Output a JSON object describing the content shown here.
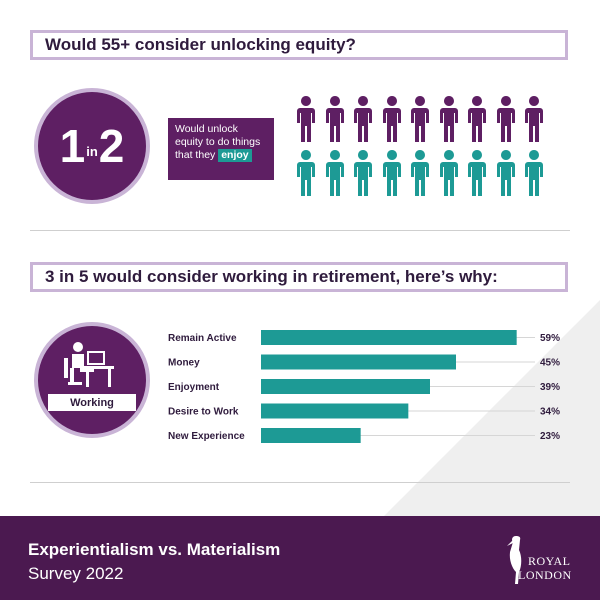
{
  "section1": {
    "title": "Would 55+ consider unlocking equity?",
    "ratio_num": "1",
    "ratio_word": "in",
    "ratio_den": "2",
    "callout_text": "Would unlock equity to do things that they",
    "callout_highlight": "enjoy",
    "figures_highlighted": 9,
    "figures_total": 18
  },
  "section2": {
    "title": "3 in 5 would consider working in retirement, here’s why:",
    "icon_label": "Working"
  },
  "chart_data": {
    "type": "bar",
    "orientation": "horizontal",
    "categories": [
      "Remain Active",
      "Money",
      "Enjoyment",
      "Desire to Work",
      "New Experience"
    ],
    "values": [
      59,
      45,
      39,
      34,
      23
    ],
    "value_labels": [
      "59%",
      "45%",
      "39%",
      "34%",
      "23%"
    ],
    "xlim": [
      0,
      60
    ],
    "grid": false
  },
  "footer": {
    "line1": "Experientialism vs. Materialism",
    "line2": "Survey 2022",
    "logo_line1": "ROYAL",
    "logo_line2": "LONDON"
  },
  "colors": {
    "purple": "#5e1f63",
    "teal": "#1d9a95",
    "lilac": "#c9b4d6",
    "footer": "#4b1950"
  }
}
